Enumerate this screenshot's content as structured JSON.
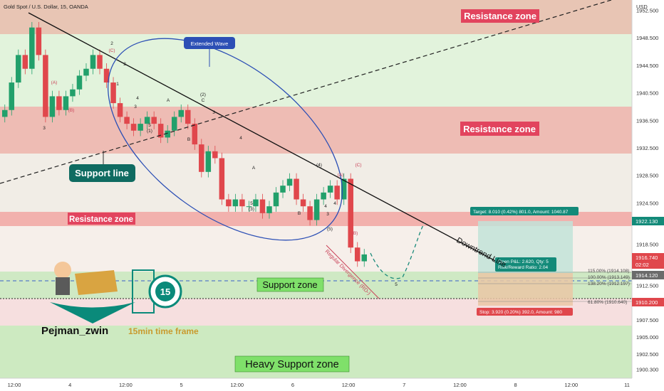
{
  "header": {
    "symbol_title": "Gold Spot / U.S. Dollar, 15, OANDA"
  },
  "price_axis": {
    "currency": "USD",
    "ticks": [
      "1952.500",
      "1948.500",
      "1944.500",
      "1940.500",
      "1936.500",
      "1932.500",
      "1928.500",
      "1924.500",
      "1918.500",
      "1912.500",
      "1907.500",
      "1905.000",
      "1902.500",
      "1900.300"
    ],
    "current_price_tag": "1922.130",
    "last_price_tag": "1916.740",
    "countdown": "02:02",
    "tag_1914": "1914.120",
    "tag_1910": "1910.200"
  },
  "time_axis": {
    "ticks": [
      "12:00",
      "4",
      "12:00",
      "5",
      "12:00",
      "6",
      "12:00",
      "7",
      "12:00",
      "8",
      "12:00",
      "11"
    ]
  },
  "zones": {
    "resistance_top": "Resistance zone",
    "resistance_mid": "Resistance zone",
    "resistance_low": "Resistance zone",
    "support": "Support zone",
    "heavy_support": "Heavy Support zone"
  },
  "annotations": {
    "support_line": "Support line",
    "extended_wave": "Extended Wave",
    "downtrend": "Downtrend Line",
    "regular_divergence": "Regular Divergence (RD-)"
  },
  "trade": {
    "target": "Target: 8.010 (0.42%) 801.0, Amount: 1040.87",
    "open_pl": "Open P&L: 2.620, Qty: 5",
    "risk_reward": "Risk/Reward Ratio: 2.04",
    "stop": "Stop: 3.920 (0.20%) 392.0, Amount: 980"
  },
  "fib_levels": [
    "115.00% (1914.108)",
    "100.00% (1913.149)",
    "138.20% (1912.197)",
    "61.80% (1910.640)"
  ],
  "waves": [
    "2",
    "(C)",
    "1",
    "2",
    "3",
    "4",
    "5",
    "(2)",
    "C",
    "A",
    "B",
    "(1)",
    "3",
    "4",
    "5",
    "(3)",
    "A",
    "B",
    "(A)",
    "(B)",
    "(4)",
    "(5)",
    "3",
    "4",
    "(C)",
    "(B)",
    "5",
    "(A)",
    "3",
    "4"
  ],
  "logo": {
    "author": "Pejman_zwin",
    "timeframe": "15min time frame",
    "badge": "15"
  },
  "chart_data": {
    "type": "candlestick",
    "symbol": "Gold Spot / U.S. Dollar, 15, OANDA",
    "ylim": [
      1899,
      1954
    ],
    "x_ticks": [
      "12:00",
      "4",
      "12:00",
      "5",
      "12:00",
      "6",
      "12:00",
      "7",
      "12:00",
      "8",
      "12:00",
      "11"
    ],
    "series_close": [
      1938,
      1942,
      1946,
      1944,
      1950,
      1946,
      1937,
      1940,
      1938,
      1940,
      1941,
      1943,
      1944,
      1946,
      1944,
      1942,
      1939,
      1937,
      1936,
      1935,
      1936,
      1937,
      1936,
      1934,
      1935,
      1937,
      1938,
      1936,
      1933,
      1929,
      1932,
      1931,
      1925,
      1924,
      1925,
      1924,
      1924,
      1925,
      1923,
      1924,
      1926,
      1927,
      1928,
      1925,
      1924,
      1922,
      1925,
      1926,
      1927,
      1925,
      1928,
      1918,
      1916,
      1917
    ]
  }
}
